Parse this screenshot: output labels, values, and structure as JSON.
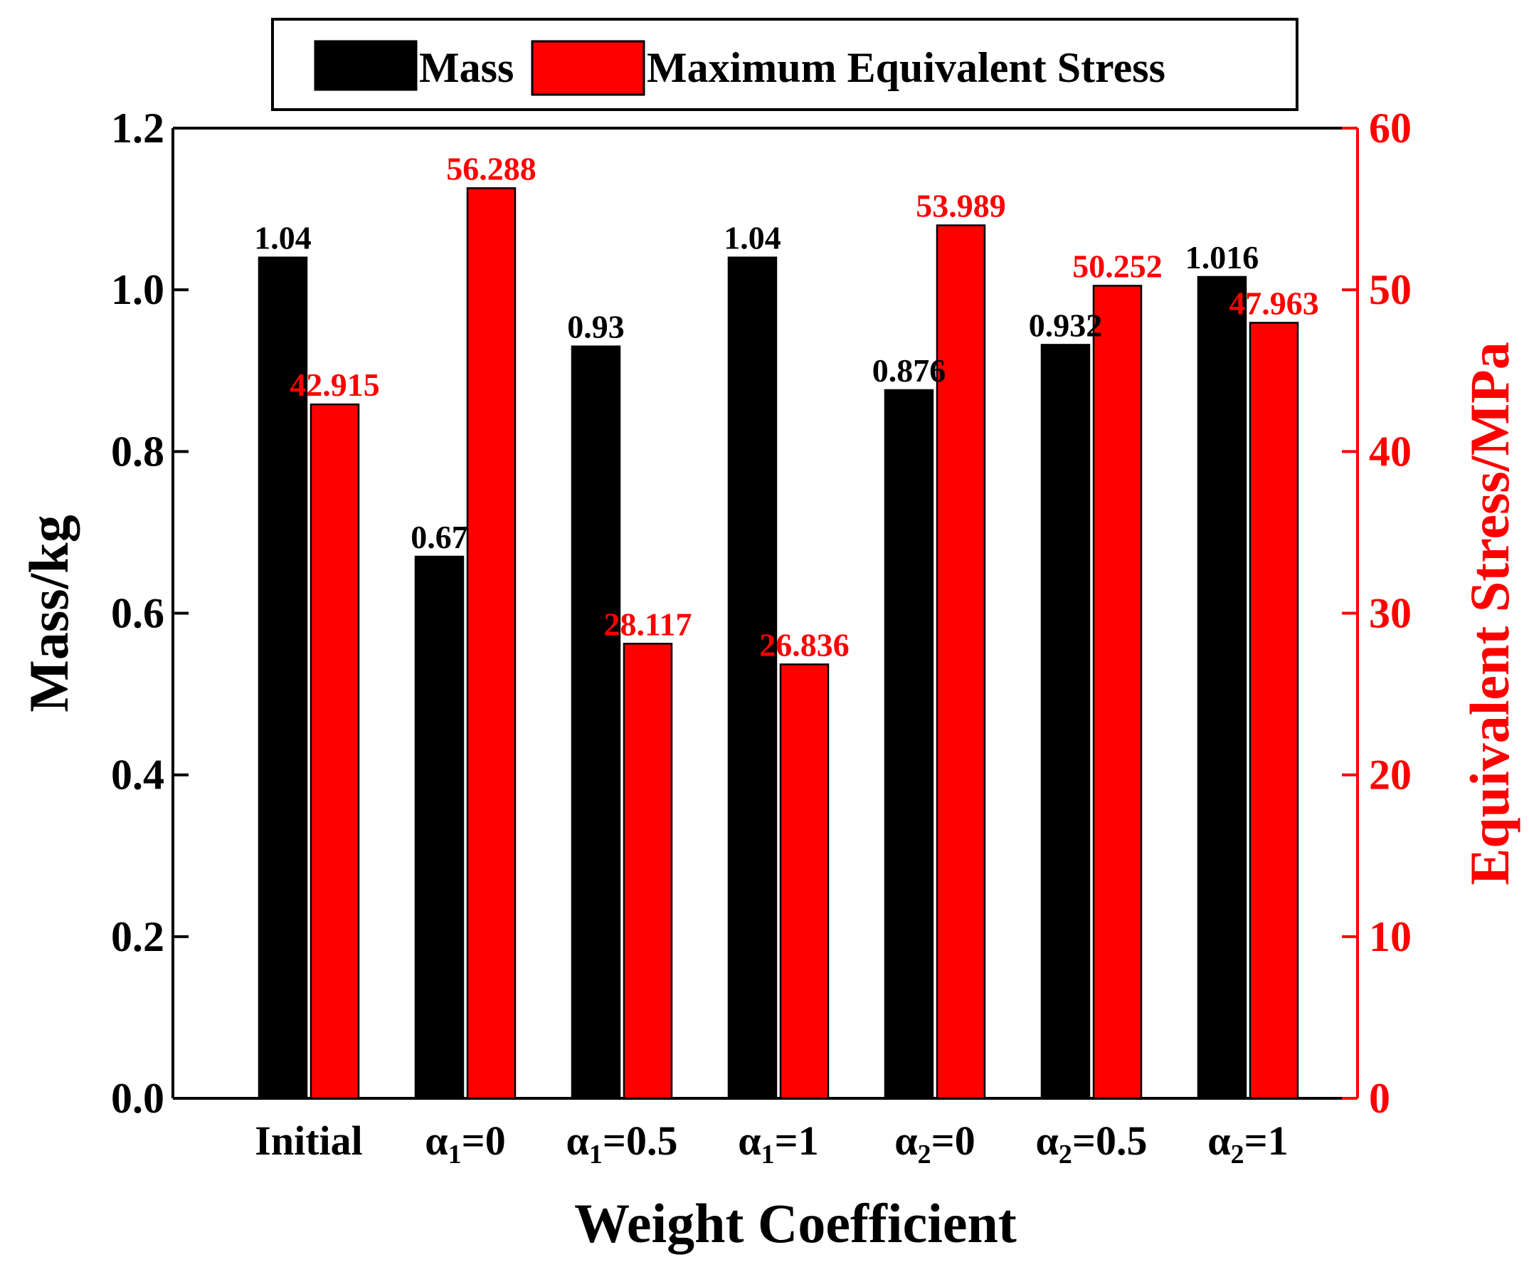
{
  "chart_data": {
    "type": "bar",
    "categories": [
      {
        "base": "Initial",
        "sub": "",
        "eq": ""
      },
      {
        "base": "α",
        "sub": "1",
        "eq": "=0"
      },
      {
        "base": "α",
        "sub": "1",
        "eq": "=0.5"
      },
      {
        "base": "α",
        "sub": "1",
        "eq": "=1"
      },
      {
        "base": "α",
        "sub": "2",
        "eq": "=0"
      },
      {
        "base": "α",
        "sub": "2",
        "eq": "=0.5"
      },
      {
        "base": "α",
        "sub": "2",
        "eq": "=1"
      }
    ],
    "series": [
      {
        "name": "Mass",
        "axis": "left",
        "color": "#000000",
        "label_color": "#000000",
        "values": [
          1.04,
          0.67,
          0.93,
          1.04,
          0.876,
          0.932,
          1.016
        ],
        "labels": [
          "1.04",
          "0.67",
          "0.93",
          "1.04",
          "0.876",
          "0.932",
          "1.016"
        ]
      },
      {
        "name": "Maximum Equivalent Stress",
        "axis": "right",
        "color": "#ff0000",
        "label_color": "#ff0000",
        "values": [
          42.915,
          56.288,
          28.117,
          26.836,
          53.989,
          50.252,
          47.963
        ],
        "labels": [
          "42.915",
          "56.288",
          "28.117",
          "26.836",
          "53.989",
          "50.252",
          "47.963"
        ]
      }
    ],
    "xlabel": "Weight Coefficient",
    "ylabel_left": "Mass/kg",
    "ylabel_right": "Equivalent Stress/MPa",
    "ylim_left": [
      0,
      1.2
    ],
    "yticks_left": [
      "0.0",
      "0.2",
      "0.4",
      "0.6",
      "0.8",
      "1.0",
      "1.2"
    ],
    "ylim_right": [
      0,
      60
    ],
    "yticks_right": [
      "0",
      "10",
      "20",
      "30",
      "40",
      "50",
      "60"
    ],
    "legend_position": "top-center",
    "right_axis_color": "#ff0000"
  }
}
